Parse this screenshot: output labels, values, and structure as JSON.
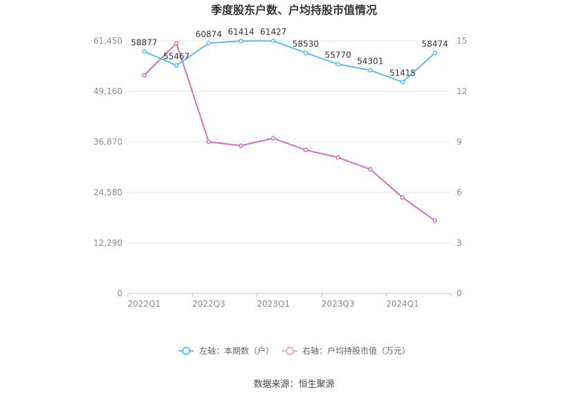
{
  "chart_data": {
    "type": "line",
    "title": "季度股东户数、户均持股市值情况",
    "x": [
      "2022Q1",
      "2022Q2",
      "2022Q3",
      "2022Q4",
      "2023Q1",
      "2023Q2",
      "2023Q3",
      "2023Q4",
      "2024Q1",
      "2024Q2"
    ],
    "x_tick_labels": [
      "2022Q1",
      "2022Q3",
      "2023Q1",
      "2023Q3",
      "2024Q1"
    ],
    "left_axis": {
      "ticks": [
        "0",
        "12,290",
        "24,580",
        "36,870",
        "49,160",
        "61,450"
      ],
      "ylim": [
        0,
        61450
      ]
    },
    "right_axis": {
      "ticks": [
        "0",
        "3",
        "6",
        "9",
        "12",
        "15"
      ],
      "ylim": [
        0,
        15
      ]
    },
    "series": [
      {
        "name": "左轴：本期数（户）",
        "axis": "left",
        "color": "#5bbcf0",
        "values": [
          58877,
          55467,
          60874,
          61414,
          61427,
          58530,
          55770,
          54301,
          51415,
          58474
        ],
        "labels": [
          "58877",
          "55467",
          "60874",
          "61414",
          "61427",
          "58530",
          "55770",
          "54301",
          "51415",
          "58474"
        ]
      },
      {
        "name": "右轴：户均持股市值（万元）",
        "axis": "right",
        "color": "#d36fb8",
        "values": [
          12.95,
          14.85,
          9.0,
          8.78,
          9.22,
          8.52,
          8.08,
          7.37,
          5.7,
          4.33
        ]
      }
    ],
    "grid": true,
    "legend_position": "bottom"
  },
  "footer": {
    "source": "数据来源：恒生聚源"
  }
}
